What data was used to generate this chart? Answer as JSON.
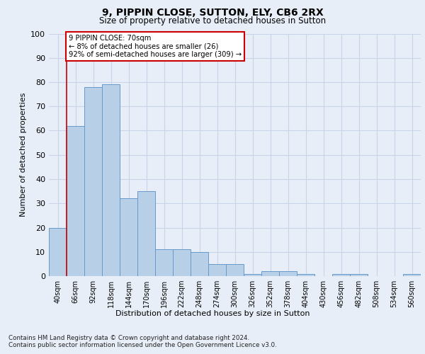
{
  "title_line1": "9, PIPPIN CLOSE, SUTTON, ELY, CB6 2RX",
  "title_line2": "Size of property relative to detached houses in Sutton",
  "xlabel": "Distribution of detached houses by size in Sutton",
  "ylabel": "Number of detached properties",
  "categories": [
    "40sqm",
    "66sqm",
    "92sqm",
    "118sqm",
    "144sqm",
    "170sqm",
    "196sqm",
    "222sqm",
    "248sqm",
    "274sqm",
    "300sqm",
    "326sqm",
    "352sqm",
    "378sqm",
    "404sqm",
    "430sqm",
    "456sqm",
    "482sqm",
    "508sqm",
    "534sqm",
    "560sqm"
  ],
  "values": [
    20,
    62,
    78,
    79,
    32,
    35,
    11,
    11,
    10,
    5,
    5,
    1,
    2,
    2,
    1,
    0,
    1,
    1,
    0,
    0,
    1
  ],
  "bar_color": "#b8cfe8",
  "bar_edge_color": "#6699cc",
  "grid_color": "#c8d4e8",
  "annotation_line1": "9 PIPPIN CLOSE: 70sqm",
  "annotation_line2": "← 8% of detached houses are smaller (26)",
  "annotation_line3": "92% of semi-detached houses are larger (309) →",
  "annotation_box_color": "#ffffff",
  "annotation_box_edge_color": "#cc0000",
  "red_line_x": 0.5,
  "ylim": [
    0,
    100
  ],
  "yticks": [
    0,
    10,
    20,
    30,
    40,
    50,
    60,
    70,
    80,
    90,
    100
  ],
  "footnote1": "Contains HM Land Registry data © Crown copyright and database right 2024.",
  "footnote2": "Contains public sector information licensed under the Open Government Licence v3.0.",
  "background_color": "#e8eef8"
}
